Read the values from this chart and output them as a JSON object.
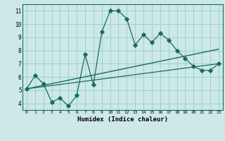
{
  "title": "",
  "xlabel": "Humidex (Indice chaleur)",
  "ylabel": "",
  "bg_color": "#cce8e8",
  "grid_color": "#99cccc",
  "line_color": "#1a6b5a",
  "xlim": [
    -0.5,
    23.5
  ],
  "ylim": [
    3.5,
    11.5
  ],
  "xticks": [
    0,
    1,
    2,
    3,
    4,
    5,
    6,
    7,
    8,
    9,
    10,
    11,
    12,
    13,
    14,
    15,
    16,
    17,
    18,
    19,
    20,
    21,
    22,
    23
  ],
  "yticks": [
    4,
    5,
    6,
    7,
    8,
    9,
    10,
    11
  ],
  "main_series": [
    [
      0,
      5.1
    ],
    [
      1,
      6.1
    ],
    [
      2,
      5.5
    ],
    [
      3,
      4.1
    ],
    [
      4,
      4.4
    ],
    [
      5,
      3.8
    ],
    [
      6,
      4.6
    ],
    [
      7,
      7.7
    ],
    [
      8,
      5.4
    ],
    [
      9,
      9.4
    ],
    [
      10,
      11.0
    ],
    [
      11,
      11.0
    ],
    [
      12,
      10.4
    ],
    [
      13,
      8.4
    ],
    [
      14,
      9.2
    ],
    [
      15,
      8.6
    ],
    [
      16,
      9.3
    ],
    [
      17,
      8.8
    ],
    [
      18,
      8.0
    ],
    [
      19,
      7.4
    ],
    [
      20,
      6.8
    ],
    [
      21,
      6.5
    ],
    [
      22,
      6.5
    ],
    [
      23,
      7.0
    ]
  ],
  "upper_line": [
    [
      0,
      5.1
    ],
    [
      23,
      8.1
    ]
  ],
  "lower_line": [
    [
      0,
      5.1
    ],
    [
      23,
      7.0
    ]
  ],
  "marker_size": 2.8,
  "marker": "D",
  "linewidth": 0.9
}
